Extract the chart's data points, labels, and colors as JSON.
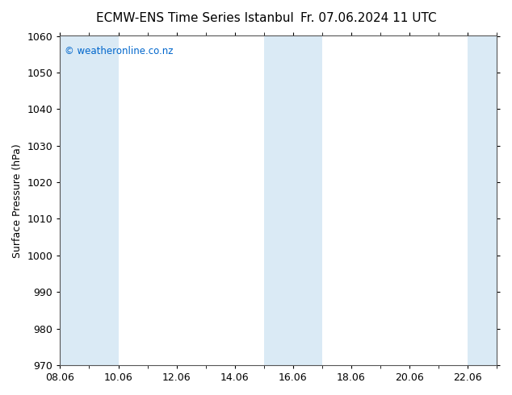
{
  "title_left": "ECMW-ENS Time Series Istanbul",
  "title_right": "Fr. 07.06.2024 11 UTC",
  "ylabel": "Surface Pressure (hPa)",
  "ylim": [
    970,
    1060
  ],
  "yticks": [
    970,
    980,
    990,
    1000,
    1010,
    1020,
    1030,
    1040,
    1050,
    1060
  ],
  "xlim": [
    0,
    15
  ],
  "xtick_labels": [
    "08.06",
    "10.06",
    "12.06",
    "14.06",
    "16.06",
    "18.06",
    "20.06",
    "22.06"
  ],
  "xtick_positions": [
    0,
    2,
    4,
    6,
    8,
    10,
    12,
    14
  ],
  "background_color": "#ffffff",
  "band_color": "#daeaf5",
  "band_color2": "#e8f3fa",
  "shaded_bands": [
    {
      "x_start": 0,
      "x_end": 1
    },
    {
      "x_start": 1,
      "x_end": 2
    },
    {
      "x_start": 7,
      "x_end": 8
    },
    {
      "x_start": 8,
      "x_end": 9
    },
    {
      "x_start": 14,
      "x_end": 15
    }
  ],
  "watermark": "© weatheronline.co.nz",
  "watermark_color": "#0066cc",
  "title_fontsize": 11,
  "axis_fontsize": 9,
  "tick_fontsize": 9,
  "minor_tick_interval": 1
}
